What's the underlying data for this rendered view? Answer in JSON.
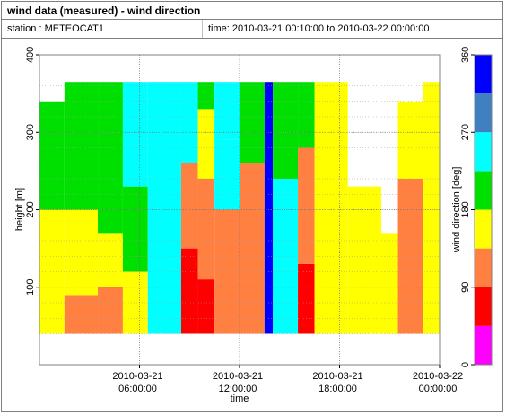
{
  "header": {
    "title": "wind data (measured) - wind direction",
    "station": "station : METEOCAT1",
    "time_range": "time: 2010-03-21 00:10:00 to 2010-03-22 00:00:00"
  },
  "chart_data": {
    "type": "heatmap",
    "title": "wind data (measured) - wind direction",
    "xlabel": "time",
    "ylabel": "height [m]",
    "colorbar_label": "wind direction [deg]",
    "x_ticks": [
      {
        "hour": 6,
        "line1": "2010-03-21",
        "line2": "06:00:00"
      },
      {
        "hour": 12,
        "line1": "2010-03-21",
        "line2": "12:00:00"
      },
      {
        "hour": 18,
        "line1": "2010-03-21",
        "line2": "18:00:00"
      },
      {
        "hour": 24,
        "line1": "2010-03-22",
        "line2": "00:00:00"
      }
    ],
    "xlim_hours": [
      0,
      24
    ],
    "y_ticks": [
      100,
      200,
      300,
      400
    ],
    "ylim": [
      0,
      400
    ],
    "colorbar_ticks": [
      0,
      90,
      180,
      270,
      360
    ],
    "colorbar_bins": [
      {
        "from": 0,
        "to": 45,
        "color": "#ff00ff"
      },
      {
        "from": 45,
        "to": 90,
        "color": "#ff0000"
      },
      {
        "from": 90,
        "to": 135,
        "color": "#ff8040"
      },
      {
        "from": 135,
        "to": 180,
        "color": "#ffff00"
      },
      {
        "from": 180,
        "to": 225,
        "color": "#00e000"
      },
      {
        "from": 225,
        "to": 270,
        "color": "#00ffff"
      },
      {
        "from": 270,
        "to": 315,
        "color": "#4080c0"
      },
      {
        "from": 315,
        "to": 360,
        "color": "#0000ff"
      }
    ],
    "height_levels_m": [
      40,
      60,
      80,
      100,
      120,
      140,
      160,
      180,
      200,
      220,
      240,
      260,
      280,
      300,
      320,
      340,
      360
    ],
    "segments": [
      {
        "t": [
          0.0,
          1.5
        ],
        "layers": [
          [
            40,
            120,
            135
          ],
          [
            120,
            200,
            160
          ],
          [
            200,
            340,
            200
          ]
        ]
      },
      {
        "t": [
          1.5,
          3.5
        ],
        "layers": [
          [
            40,
            90,
            120
          ],
          [
            90,
            200,
            160
          ],
          [
            200,
            365,
            200
          ]
        ]
      },
      {
        "t": [
          3.5,
          5.0
        ],
        "layers": [
          [
            40,
            100,
            125
          ],
          [
            100,
            170,
            160
          ],
          [
            170,
            300,
            210
          ],
          [
            300,
            365,
            220
          ]
        ]
      },
      {
        "t": [
          5.0,
          6.5
        ],
        "layers": [
          [
            40,
            120,
            150
          ],
          [
            120,
            230,
            220
          ],
          [
            230,
            365,
            250
          ]
        ]
      },
      {
        "t": [
          6.5,
          8.5
        ],
        "layers": [
          [
            40,
            100,
            230
          ],
          [
            100,
            200,
            250
          ],
          [
            200,
            365,
            250
          ]
        ]
      },
      {
        "t": [
          8.5,
          9.5
        ],
        "layers": [
          [
            40,
            150,
            70
          ],
          [
            150,
            260,
            110
          ],
          [
            260,
            365,
            240
          ]
        ]
      },
      {
        "t": [
          9.5,
          10.5
        ],
        "layers": [
          [
            40,
            110,
            60
          ],
          [
            110,
            240,
            110
          ],
          [
            240,
            330,
            160
          ],
          [
            330,
            365,
            200
          ]
        ]
      },
      {
        "t": [
          10.5,
          12.0
        ],
        "layers": [
          [
            40,
            200,
            110
          ],
          [
            200,
            290,
            240
          ],
          [
            290,
            365,
            240
          ]
        ]
      },
      {
        "t": [
          12.0,
          13.5
        ],
        "layers": [
          [
            40,
            260,
            115
          ],
          [
            260,
            365,
            210
          ]
        ]
      },
      {
        "t": [
          13.5,
          14.0
        ],
        "layers": [
          [
            40,
            365,
            330
          ]
        ]
      },
      {
        "t": [
          14.0,
          15.5
        ],
        "layers": [
          [
            40,
            240,
            230
          ],
          [
            240,
            300,
            200
          ],
          [
            300,
            365,
            180
          ]
        ]
      },
      {
        "t": [
          15.5,
          16.5
        ],
        "layers": [
          [
            40,
            130,
            70
          ],
          [
            130,
            280,
            110
          ],
          [
            280,
            365,
            200
          ]
        ]
      },
      {
        "t": [
          16.5,
          18.5
        ],
        "layers": [
          [
            40,
            260,
            150
          ],
          [
            260,
            365,
            140
          ]
        ]
      },
      {
        "t": [
          18.5,
          20.5
        ],
        "layers": [
          [
            40,
            200,
            150
          ],
          [
            200,
            230,
            140
          ]
        ]
      },
      {
        "t": [
          20.5,
          21.5
        ],
        "layers": [
          [
            40,
            170,
            150
          ]
        ]
      },
      {
        "t": [
          21.5,
          23.0
        ],
        "layers": [
          [
            40,
            240,
            120
          ],
          [
            240,
            340,
            150
          ]
        ]
      },
      {
        "t": [
          23.0,
          24.0
        ],
        "layers": [
          [
            40,
            365,
            150
          ]
        ]
      }
    ]
  }
}
